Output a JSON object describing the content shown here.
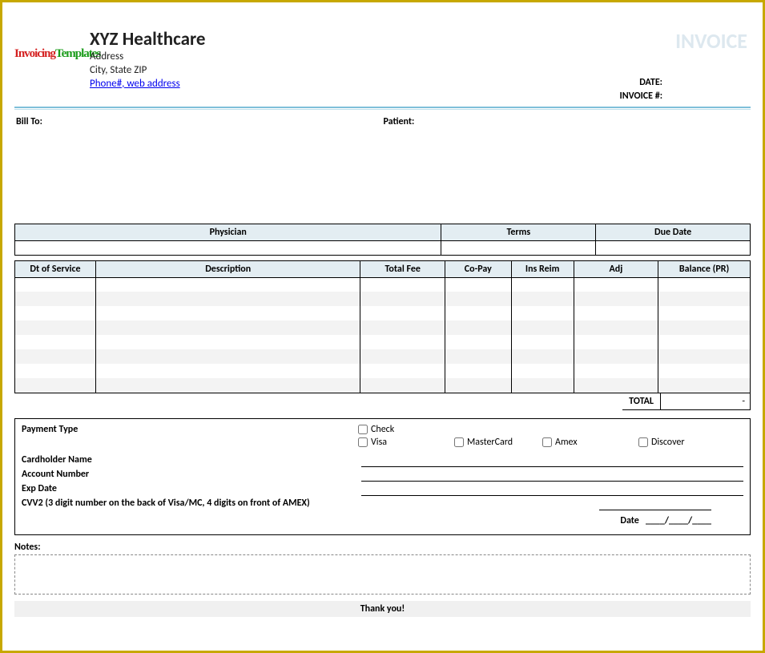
{
  "header": {
    "logo_text_1": "Invoicing",
    "logo_text_2": "Templates",
    "company_name": "XYZ Healthcare",
    "address_line": "Address",
    "city_state_zip": "City, State ZIP",
    "contact_link": "Phone#, web address",
    "invoice_title": "INVOICE",
    "date_label": "DATE:",
    "invoice_num_label": "INVOICE #:"
  },
  "addresses": {
    "bill_to_label": "Bill To:",
    "patient_label": "Patient:"
  },
  "top_table": {
    "headers": [
      "Physician",
      "Terms",
      "Due Date"
    ],
    "col_widths": [
      "58%",
      "21%",
      "21%"
    ]
  },
  "line_table": {
    "headers": [
      "Dt of Service",
      "Description",
      "Total Fee",
      "Co-Pay",
      "Ins Reim",
      "Adj",
      "Balance (PR)"
    ],
    "col_widths": [
      "11%",
      "36%",
      "11.5%",
      "9%",
      "8.5%",
      "11.5%",
      "12.5%"
    ],
    "row_count": 8,
    "header_bg": "#e3edf2",
    "stripe_bg": "#f3f3f3",
    "border_color": "#000000"
  },
  "totals": {
    "label": "TOTAL",
    "value": "-"
  },
  "payment": {
    "type_label": "Payment Type",
    "cardholder_label": "Cardholder Name",
    "account_label": "Account Number",
    "exp_label": "Exp Date",
    "cvv_label": "CVV2 (3 digit number on the back of Visa/MC, 4 digits on front of AMEX)",
    "options": [
      "Check",
      "Visa",
      "MasterCard",
      "Amex",
      "Discover"
    ],
    "date_label": "Date",
    "date_placeholder": "____/____/____"
  },
  "notes": {
    "label": "Notes:"
  },
  "footer": {
    "thank_you": "Thank you!"
  },
  "styling": {
    "frame_border_color": "#c7a800",
    "invoice_title_color": "#dde8ef",
    "rule_color_top": "#7fbfd9",
    "rule_color_bottom": "#bde0ec",
    "link_color": "#0000ee"
  }
}
